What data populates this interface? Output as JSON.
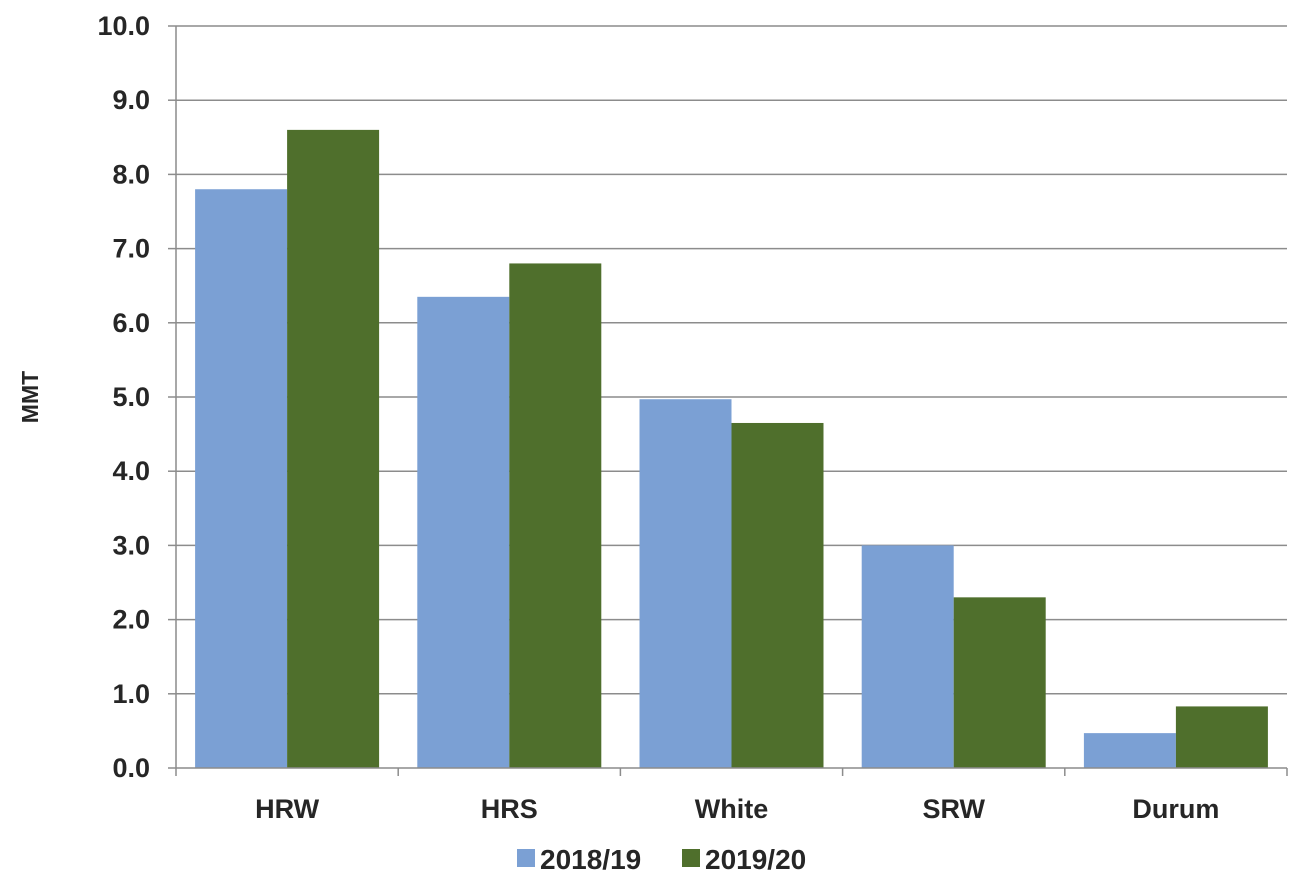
{
  "chart_data": {
    "type": "bar",
    "title": "",
    "xlabel": "",
    "ylabel": "MMT",
    "ylim": [
      0,
      10
    ],
    "yticks": [
      "0.0",
      "1.0",
      "2.0",
      "3.0",
      "4.0",
      "5.0",
      "6.0",
      "7.0",
      "8.0",
      "9.0",
      "10.0"
    ],
    "grid": true,
    "legend_position": "bottom",
    "categories": [
      "HRW",
      "HRS",
      "White",
      "SRW",
      "Durum"
    ],
    "series": [
      {
        "name": "2018/19",
        "color": "#7ba0d4",
        "values": [
          7.8,
          6.35,
          4.97,
          3.0,
          0.47
        ]
      },
      {
        "name": "2019/20",
        "color": "#4f6f2c",
        "values": [
          8.6,
          6.8,
          4.65,
          2.3,
          0.83
        ]
      }
    ]
  }
}
